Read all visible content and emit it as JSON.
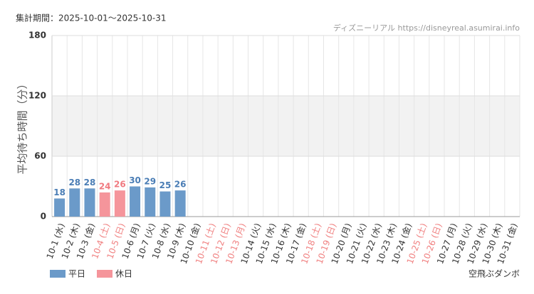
{
  "chart_data": {
    "type": "bar",
    "title": "集計期間：2025-10-01～2025-10-31",
    "source": "ディズニーリアル https://disneyreal.asumirai.info",
    "ylabel": "平均待ち時間（分）",
    "footnote": "空飛ぶダンボ",
    "categories": [
      "10-1 (水)",
      "10-2 (木)",
      "10-3 (金)",
      "10-4 (土)",
      "10-5 (日)",
      "10-6 (月)",
      "10-7 (火)",
      "10-8 (水)",
      "10-9 (木)",
      "10-10 (金)",
      "10-11 (土)",
      "10-12 (日)",
      "10-13 (月)",
      "10-14 (火)",
      "10-15 (水)",
      "10-16 (木)",
      "10-17 (金)",
      "10-18 (土)",
      "10-19 (日)",
      "10-20 (月)",
      "10-21 (火)",
      "10-22 (水)",
      "10-23 (木)",
      "10-24 (金)",
      "10-25 (土)",
      "10-26 (日)",
      "10-27 (月)",
      "10-28 (火)",
      "10-29 (水)",
      "10-30 (木)",
      "10-31 (金)"
    ],
    "category_label_colors": [
      "#333",
      "#333",
      "#333",
      "#f08080",
      "#f08080",
      "#333",
      "#333",
      "#333",
      "#333",
      "#333",
      "#f08080",
      "#f08080",
      "#f08080",
      "#333",
      "#333",
      "#333",
      "#333",
      "#f08080",
      "#f08080",
      "#333",
      "#333",
      "#333",
      "#333",
      "#333",
      "#f08080",
      "#f08080",
      "#333",
      "#333",
      "#333",
      "#333",
      "#333"
    ],
    "series": [
      {
        "name": "平日",
        "color": "#6b9ac9",
        "label_color": "#4a7db5",
        "values": [
          18,
          28,
          28,
          null,
          null,
          30,
          29,
          25,
          26,
          null,
          null,
          null,
          null,
          null,
          null,
          null,
          null,
          null,
          null,
          null,
          null,
          null,
          null,
          null,
          null,
          null,
          null,
          null,
          null,
          null,
          null
        ]
      },
      {
        "name": "休日",
        "color": "#f5959b",
        "label_color": "#f07a80",
        "values": [
          null,
          null,
          null,
          24,
          26,
          null,
          null,
          null,
          null,
          null,
          null,
          null,
          null,
          null,
          null,
          null,
          null,
          null,
          null,
          null,
          null,
          null,
          null,
          null,
          null,
          null,
          null,
          null,
          null,
          null,
          null
        ]
      }
    ],
    "ylim": [
      0,
      180
    ],
    "yticks": [
      0,
      60,
      120,
      180
    ],
    "grid": true
  }
}
